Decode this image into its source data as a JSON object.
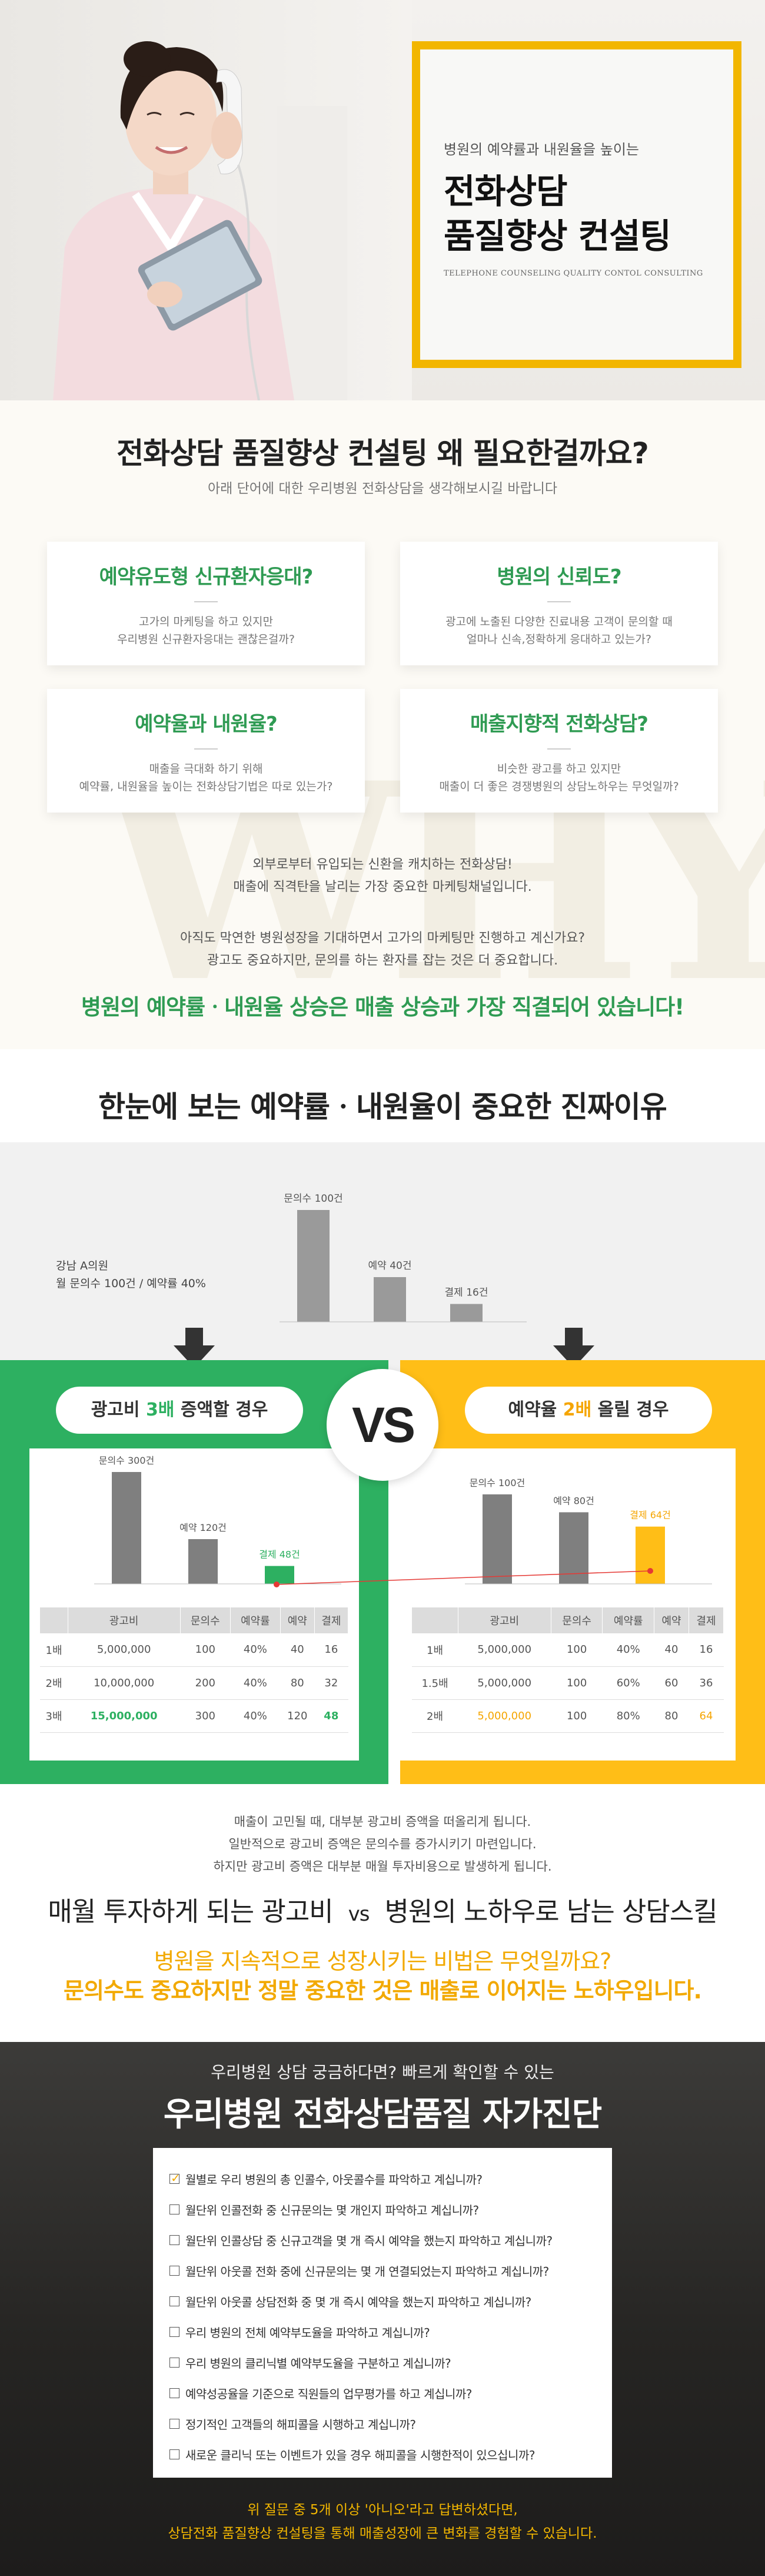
{
  "hero": {
    "subtitle": "병원의 예약률과 내원율을 높이는",
    "title_line1": "전화상담",
    "title_line2": "품질향상 컨설팅",
    "english": "TELEPHONE COUNSELING QUALITY CONTOL CONSULTING",
    "accent_color": "#f2b600"
  },
  "why": {
    "title": "전화상담 품질향상 컨설팅 왜 필요한걸까요?",
    "subtitle": "아래 단어에 대한 우리병원 전화상담을 생각해보시길 바랍니다",
    "background_word": "WHY",
    "cards": [
      {
        "title": "예약유도형 신규환자응대?",
        "line1": "고가의 마케팅을 하고 있지만",
        "line2": "우리병원 신규환자응대는 괜찮은걸까?"
      },
      {
        "title": "병원의 신뢰도?",
        "line1": "광고에 노출된 다양한 진료내용 고객이 문의할 때",
        "line2": "얼마나 신속,정확하게 응대하고 있는가?"
      },
      {
        "title": "예약율과 내원율?",
        "line1": "매출을 극대화 하기 위해",
        "line2": "예약률, 내원율을 높이는 전화상담기법은 따로 있는가?"
      },
      {
        "title": "매출지향적 전화상담?",
        "line1": "비슷한 광고를 하고 있지만",
        "line2": "매출이 더 좋은 경쟁병원의 상담노하우는 무엇일까?"
      }
    ],
    "para1_line1": "외부로부터 유입되는 신환을 캐치하는 전화상담!",
    "para1_line2": "매출에 직격탄을 날리는 가장 중요한 마케팅채널입니다.",
    "para2_line1": "아직도 막연한 병원성장을 기대하면서 고가의 마케팅만 진행하고 계신가요?",
    "para2_line2": "광고도 중요하지만, 문의를 하는 환자를 잡는 것은 더 중요합니다.",
    "emphasis": "병원의 예약률ㆍ내원율 상승은 매출 상승과 가장 직결되어 있습니다!",
    "accent_color": "#2f9b53"
  },
  "reason": {
    "title": "한눈에 보는 예약률ㆍ내원율이 중요한 진짜이유",
    "chart_caption_line1": "강남 A의원",
    "chart_caption_line2": "월 문의수 100건 / 예약률 40%"
  },
  "chart_data": [
    {
      "type": "bar",
      "title": "",
      "categories": [
        "문의수",
        "예약",
        "결제"
      ],
      "values": [
        100,
        40,
        16
      ],
      "data_labels": [
        "문의수 100건",
        "예약 40건",
        "결제 16건"
      ],
      "colors": [
        "#9a9a9a",
        "#9a9a9a",
        "#9a9a9a"
      ]
    },
    {
      "type": "bar",
      "title": "",
      "categories": [
        "문의수",
        "예약",
        "결제"
      ],
      "values": [
        300,
        120,
        48
      ],
      "data_labels": [
        "문의수 300건",
        "예약 120건",
        "결제 48건"
      ],
      "colors": [
        "#7f7f7f",
        "#7f7f7f",
        "#2db061"
      ]
    },
    {
      "type": "bar",
      "title": "",
      "categories": [
        "문의수",
        "예약",
        "결제"
      ],
      "values": [
        100,
        80,
        64
      ],
      "data_labels": [
        "문의수 100건",
        "예약 80건",
        "결제 64건"
      ],
      "colors": [
        "#7f7f7f",
        "#7f7f7f",
        "#ffbe17"
      ]
    }
  ],
  "panels": {
    "vs": "VS",
    "left": {
      "label_pre": "광고비 ",
      "label_em": "3배",
      "label_post": " 증액할 경우",
      "color": "#2db061",
      "headers": [
        "",
        "광고비",
        "문의수",
        "예약률",
        "예약",
        "결제"
      ],
      "rows": [
        [
          "1배",
          "5,000,000",
          "100",
          "40%",
          "40",
          "16"
        ],
        [
          "2배",
          "10,000,000",
          "200",
          "40%",
          "80",
          "32"
        ],
        [
          "3배",
          "15,000,000",
          "300",
          "40%",
          "120",
          "48"
        ]
      ]
    },
    "right": {
      "label_pre": "예약율 ",
      "label_em": "2배",
      "label_post": " 올릴 경우",
      "color": "#ffbe17",
      "headers": [
        "",
        "광고비",
        "문의수",
        "예약률",
        "예약",
        "결제"
      ],
      "rows": [
        [
          "1배",
          "5,000,000",
          "100",
          "40%",
          "40",
          "16"
        ],
        [
          "1.5배",
          "5,000,000",
          "100",
          "60%",
          "60",
          "36"
        ],
        [
          "2배",
          "5,000,000",
          "100",
          "80%",
          "80",
          "64"
        ]
      ]
    }
  },
  "middle": {
    "line1": "매출이 고민될 때, 대부분 광고비 증액을 떠올리게 됩니다.",
    "line2": "일반적으로 광고비 증액은 문의수를 증가시키기 마련입니다.",
    "line3": "하지만 광고비 증액은 대부분 매월 투자비용으로 발생하게 됩니다.",
    "compare_left": "매월 투자하게 되는 광고비",
    "compare_vs": "vs",
    "compare_right": "병원의 노하우로 남는 상담스킬",
    "secret_q": "병원을 지속적으로 성장시키는 비법은 무엇일까요?",
    "secret_a": "문의수도 중요하지만 정말 중요한 것은 매출로 이어지는 노하우입니다."
  },
  "diagnosis": {
    "subtitle": "우리병원 상담 궁금하다면? 빠르게 확인할 수 있는",
    "title": "우리병원 전화상담품질 자가진단",
    "items": [
      {
        "text": "월별로 우리 병원의 총 인콜수, 아웃콜수를 파악하고 계십니까?",
        "checked": true
      },
      {
        "text": "월단위 인콜전화 중 신규문의는 몇 개인지 파악하고 계십니까?",
        "checked": false
      },
      {
        "text": "월단위 인콜상담 중 신규고객을 몇 개 즉시 예약을 했는지 파악하고 계십니까?",
        "checked": false
      },
      {
        "text": "월단위 아웃콜 전화 중에 신규문의는 몇 개 연결되었는지 파악하고 계십니까?",
        "checked": false
      },
      {
        "text": "월단위 아웃콜 상담전화 중 몇 개 즉시 예약을 했는지 파악하고 계십니까?",
        "checked": false
      },
      {
        "text": "우리 병원의 전체 예약부도율을 파악하고 계십니까?",
        "checked": false
      },
      {
        "text": "우리 병원의 클리닉별 예약부도율을 구분하고 계십니까?",
        "checked": false
      },
      {
        "text": "예약성공율을 기준으로 직원들의 업무평가를 하고 계십니까?",
        "checked": false
      },
      {
        "text": "정기적인 고객들의 해피콜을 시행하고 계십니까?",
        "checked": false
      },
      {
        "text": "새로운 클리닉 또는 이벤트가 있을 경우 해피콜을 시행한적이 있으십니까?",
        "checked": false
      }
    ],
    "footer_line1": "위 질문 중 5개 이상 '아니오'라고 답변하셨다면,",
    "footer_line2": "상담전화 품질향상 컨설팅을 통해 매출성장에 큰 변화를 경험할 수 있습니다."
  }
}
